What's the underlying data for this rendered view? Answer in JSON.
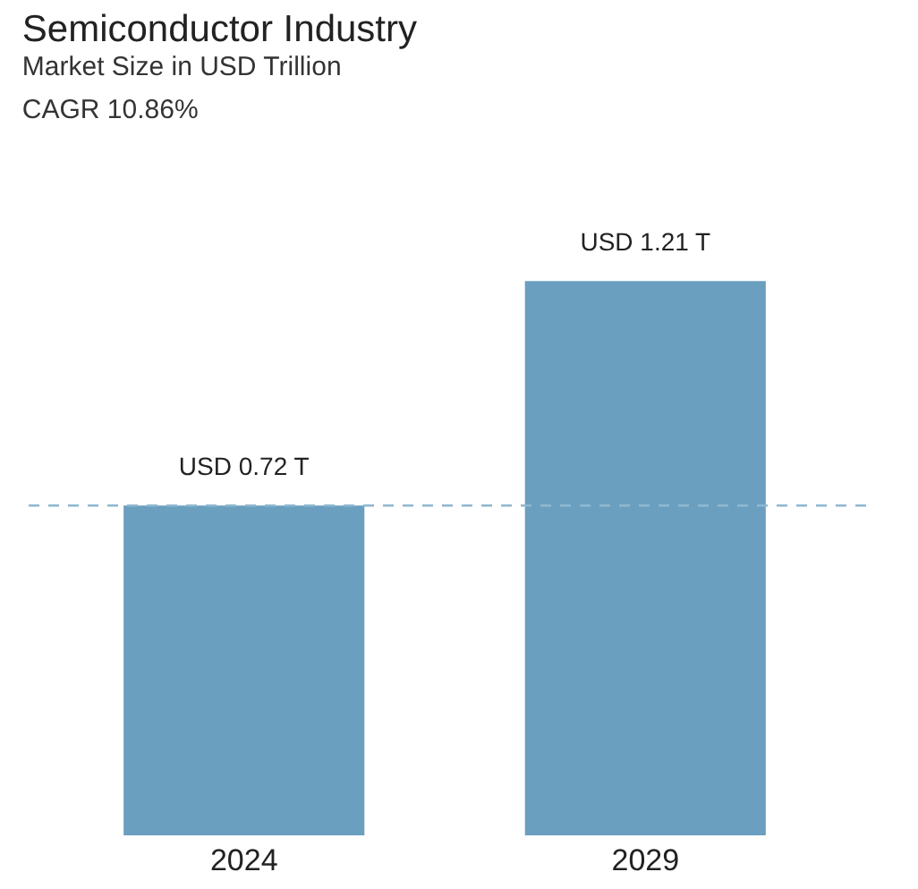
{
  "chart_data": {
    "type": "bar",
    "title": "Semiconductor Industry",
    "subtitle": "Market Size in USD Trillion",
    "annotations": [
      "CAGR 10.86%"
    ],
    "categories": [
      "2024",
      "2029"
    ],
    "values": [
      0.72,
      1.21
    ],
    "value_labels": [
      "USD 0.72 T",
      "USD 1.21 T"
    ],
    "color": "#6a9fbf",
    "ref_lines": [
      {
        "axis": "y",
        "value": 0.72,
        "color": "#8fb8d0",
        "line_style": "dashed"
      }
    ]
  }
}
